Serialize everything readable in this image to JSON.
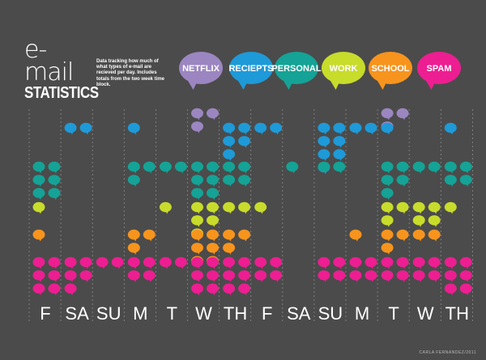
{
  "title": {
    "line1": "e-mail",
    "line2": "STATISTICS"
  },
  "description": "Data tracking how much of what types of e-mail are recieved per day. Includes totals from the two week time block.",
  "credit": "CARLA FERNANDEZ/2011",
  "chart_data": {
    "type": "dot-matrix",
    "days": [
      "F",
      "SA",
      "SU",
      "M",
      "T",
      "W",
      "TH",
      "F",
      "SA",
      "SU",
      "M",
      "T",
      "W",
      "TH"
    ],
    "series": [
      {
        "name": "NETFLIX",
        "color": "#9b86c1",
        "values": [
          0,
          0,
          0,
          0,
          0,
          3,
          0,
          0,
          0,
          0,
          0,
          3,
          0,
          0
        ]
      },
      {
        "name": "RECIEPTS",
        "color": "#1e9ad8",
        "values": [
          0,
          2,
          0,
          1,
          0,
          0,
          5,
          2,
          0,
          7,
          2,
          1,
          0,
          1
        ]
      },
      {
        "name": "PERSONAL",
        "color": "#14a396",
        "values": [
          6,
          0,
          0,
          3,
          2,
          6,
          4,
          0,
          1,
          2,
          0,
          5,
          2,
          4
        ]
      },
      {
        "name": "WORK",
        "color": "#c8dc2b",
        "values": [
          1,
          0,
          0,
          0,
          1,
          5,
          2,
          1,
          0,
          0,
          0,
          3,
          4,
          1
        ]
      },
      {
        "name": "SCHOOL",
        "color": "#f7941d",
        "values": [
          1,
          0,
          0,
          3,
          0,
          6,
          3,
          0,
          0,
          0,
          1,
          3,
          2,
          0
        ]
      },
      {
        "name": "SPAM",
        "color": "#ed1e91",
        "values": [
          6,
          5,
          2,
          4,
          2,
          6,
          6,
          4,
          0,
          4,
          4,
          4,
          4,
          6
        ]
      }
    ]
  }
}
